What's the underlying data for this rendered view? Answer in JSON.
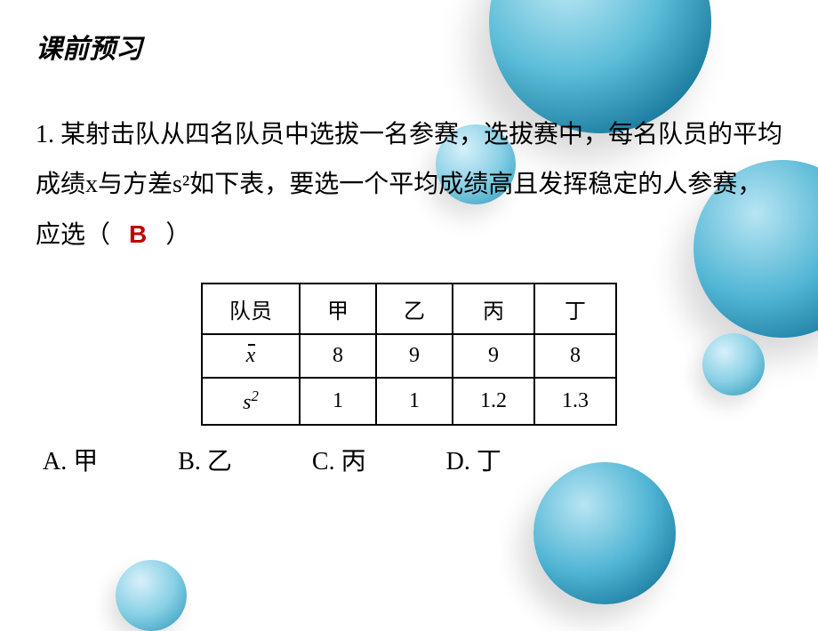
{
  "section_title": "课前预习",
  "question": {
    "prefix": "1.  某射击队从四名队员中选拔一名参赛，选拔赛中，每名队员的平均成绩x与方差s²如下表，要选一个平均成绩高且发挥稳定的人参赛，应选（",
    "answer": "B",
    "suffix": "）"
  },
  "table": {
    "header": [
      "队员",
      "甲",
      "乙",
      "丙",
      "丁"
    ],
    "row_mean_label": "x̄",
    "row_mean": [
      "8",
      "9",
      "9",
      "8"
    ],
    "row_var_label": "s²",
    "row_var": [
      "1",
      "1",
      "1.2",
      "1.3"
    ]
  },
  "options": {
    "a": "A.  甲",
    "b": "B.  乙",
    "c": "C.  丙",
    "d": "D.  丁"
  },
  "colors": {
    "answer_color": "#c00000",
    "text_color": "#000000",
    "bubble_light": "#c0e8f5",
    "bubble_mid": "#5cbdd8",
    "bubble_dark": "#1a7a9e",
    "background": "#ffffff"
  },
  "typography": {
    "title_fontsize": 30,
    "body_fontsize": 28,
    "table_fontsize": 24,
    "title_font": "SimHei",
    "body_font": "SimSun"
  }
}
